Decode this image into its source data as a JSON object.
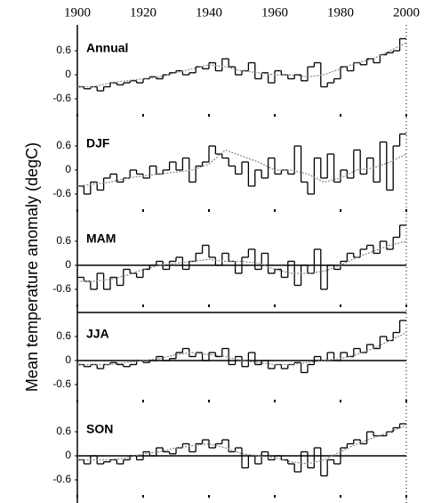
{
  "chart_data": [
    {
      "type": "line",
      "title": "Annual",
      "ylabel": "Mean temperature anomaly (degC)",
      "xlim": [
        1900,
        2000
      ],
      "xticks": [
        1900,
        1920,
        1940,
        1960,
        1980,
        2000
      ],
      "ylim": [
        -1.2,
        1.2
      ],
      "yticks": [
        -0.6,
        0,
        0.6
      ],
      "zero_line": false,
      "series": [
        {
          "color": "#000000",
          "style": "step",
          "x": [
            1900,
            1902,
            1904,
            1906,
            1908,
            1910,
            1912,
            1914,
            1916,
            1918,
            1920,
            1922,
            1924,
            1926,
            1928,
            1930,
            1932,
            1934,
            1936,
            1938,
            1940,
            1942,
            1944,
            1946,
            1948,
            1950,
            1952,
            1954,
            1956,
            1958,
            1960,
            1962,
            1964,
            1966,
            1968,
            1970,
            1972,
            1974,
            1976,
            1978,
            1980,
            1982,
            1984,
            1986,
            1988,
            1990,
            1992,
            1994,
            1996,
            1998
          ],
          "values": [
            -0.3,
            -0.35,
            -0.3,
            -0.4,
            -0.3,
            -0.2,
            -0.25,
            -0.2,
            -0.15,
            -0.2,
            -0.1,
            -0.05,
            -0.1,
            0.0,
            0.05,
            0.1,
            0.0,
            0.05,
            0.2,
            0.15,
            0.3,
            0.1,
            0.4,
            0.2,
            0.0,
            0.1,
            0.3,
            -0.1,
            0.05,
            -0.2,
            0.1,
            0.0,
            -0.1,
            0.0,
            -0.15,
            0.2,
            0.3,
            -0.3,
            -0.2,
            -0.1,
            0.2,
            0.1,
            0.3,
            0.25,
            0.4,
            0.3,
            0.5,
            0.55,
            0.6,
            0.9
          ]
        },
        {
          "color": "#888888",
          "style": "dotted",
          "x": [
            1900,
            1905,
            1910,
            1915,
            1920,
            1925,
            1930,
            1935,
            1940,
            1945,
            1950,
            1955,
            1960,
            1965,
            1970,
            1975,
            1980,
            1985,
            1990,
            1995,
            2000
          ],
          "values": [
            -0.3,
            -0.3,
            -0.2,
            -0.15,
            -0.1,
            -0.05,
            0.05,
            0.15,
            0.25,
            0.2,
            0.1,
            0.05,
            0.0,
            0.0,
            -0.05,
            0.0,
            0.15,
            0.3,
            0.4,
            0.6,
            0.8
          ]
        }
      ]
    },
    {
      "type": "line",
      "title": "DJF",
      "ylim": [
        -1.2,
        1.2
      ],
      "yticks": [
        -0.6,
        0,
        0.6
      ],
      "zero_line": false,
      "series": [
        {
          "color": "#000000",
          "style": "step",
          "x": [
            1900,
            1902,
            1904,
            1906,
            1908,
            1910,
            1912,
            1914,
            1916,
            1918,
            1920,
            1922,
            1924,
            1926,
            1928,
            1930,
            1932,
            1934,
            1936,
            1938,
            1940,
            1942,
            1944,
            1946,
            1948,
            1950,
            1952,
            1954,
            1956,
            1958,
            1960,
            1962,
            1964,
            1966,
            1968,
            1970,
            1972,
            1974,
            1976,
            1978,
            1980,
            1982,
            1984,
            1986,
            1988,
            1990,
            1992,
            1994,
            1996,
            1998
          ],
          "values": [
            -0.4,
            -0.6,
            -0.3,
            -0.5,
            -0.2,
            -0.1,
            -0.3,
            -0.2,
            0.0,
            -0.1,
            -0.2,
            0.1,
            -0.1,
            0.0,
            0.2,
            0.0,
            0.3,
            -0.3,
            0.1,
            0.2,
            0.6,
            0.4,
            0.3,
            0.1,
            -0.1,
            0.2,
            -0.4,
            0.0,
            -0.2,
            0.3,
            -0.1,
            0.0,
            -0.1,
            0.6,
            -0.3,
            -0.6,
            0.3,
            -0.2,
            0.4,
            -0.3,
            0.0,
            -0.2,
            0.5,
            -0.1,
            0.3,
            -0.3,
            0.7,
            -0.5,
            0.6,
            0.9
          ]
        },
        {
          "color": "#888888",
          "style": "dotted",
          "x": [
            1900,
            1905,
            1910,
            1915,
            1920,
            1925,
            1930,
            1935,
            1940,
            1945,
            1950,
            1955,
            1960,
            1965,
            1970,
            1975,
            1980,
            1985,
            1990,
            1995,
            2000
          ],
          "values": [
            -0.4,
            -0.35,
            -0.3,
            -0.2,
            -0.15,
            -0.1,
            -0.05,
            0.0,
            0.15,
            0.5,
            0.35,
            0.2,
            0.0,
            0.0,
            -0.1,
            -0.3,
            -0.2,
            0.0,
            0.05,
            0.2,
            0.4
          ]
        }
      ]
    },
    {
      "type": "line",
      "title": "MAM",
      "ylim": [
        -1.2,
        1.2
      ],
      "yticks": [
        -0.6,
        0,
        0.6
      ],
      "zero_line": true,
      "series": [
        {
          "color": "#000000",
          "style": "step",
          "x": [
            1900,
            1902,
            1904,
            1906,
            1908,
            1910,
            1912,
            1914,
            1916,
            1918,
            1920,
            1922,
            1924,
            1926,
            1928,
            1930,
            1932,
            1934,
            1936,
            1938,
            1940,
            1942,
            1944,
            1946,
            1948,
            1950,
            1952,
            1954,
            1956,
            1958,
            1960,
            1962,
            1964,
            1966,
            1968,
            1970,
            1972,
            1974,
            1976,
            1978,
            1980,
            1982,
            1984,
            1986,
            1988,
            1990,
            1992,
            1994,
            1996,
            1998
          ],
          "values": [
            -0.3,
            -0.4,
            -0.6,
            -0.2,
            -0.6,
            -0.3,
            -0.5,
            -0.1,
            -0.2,
            -0.3,
            -0.1,
            0.0,
            0.1,
            -0.1,
            0.1,
            0.2,
            -0.1,
            0.1,
            0.3,
            0.5,
            0.2,
            0.0,
            0.3,
            0.1,
            -0.2,
            0.2,
            0.4,
            -0.1,
            0.3,
            -0.2,
            -0.1,
            -0.3,
            0.1,
            -0.5,
            0.0,
            -0.2,
            0.4,
            -0.6,
            0.0,
            -0.1,
            0.1,
            0.3,
            0.2,
            0.4,
            0.5,
            0.3,
            0.6,
            0.4,
            0.7,
            1.0
          ]
        },
        {
          "color": "#888888",
          "style": "dotted",
          "x": [
            1900,
            1905,
            1910,
            1915,
            1920,
            1925,
            1930,
            1935,
            1940,
            1945,
            1950,
            1955,
            1960,
            1965,
            1970,
            1975,
            1980,
            1985,
            1990,
            1995,
            2000
          ],
          "values": [
            -0.4,
            -0.4,
            -0.35,
            -0.25,
            -0.1,
            0.0,
            0.05,
            0.1,
            0.15,
            0.1,
            0.1,
            0.05,
            -0.1,
            -0.2,
            -0.2,
            -0.15,
            0.0,
            0.2,
            0.35,
            0.5,
            0.6
          ]
        }
      ]
    },
    {
      "type": "line",
      "title": "JJA",
      "ylim": [
        -1.2,
        1.2
      ],
      "yticks": [
        -0.6,
        0,
        0.6
      ],
      "zero_line": true,
      "series": [
        {
          "color": "#000000",
          "style": "step",
          "x": [
            1900,
            1902,
            1904,
            1906,
            1908,
            1910,
            1912,
            1914,
            1916,
            1918,
            1920,
            1922,
            1924,
            1926,
            1928,
            1930,
            1932,
            1934,
            1936,
            1938,
            1940,
            1942,
            1944,
            1946,
            1948,
            1950,
            1952,
            1954,
            1956,
            1958,
            1960,
            1962,
            1964,
            1966,
            1968,
            1970,
            1972,
            1974,
            1976,
            1978,
            1980,
            1982,
            1984,
            1986,
            1988,
            1990,
            1992,
            1994,
            1996,
            1998
          ],
          "values": [
            -0.1,
            -0.15,
            -0.1,
            -0.2,
            -0.1,
            -0.05,
            -0.1,
            -0.15,
            -0.1,
            0.0,
            -0.05,
            0.0,
            0.1,
            0.0,
            0.05,
            0.2,
            0.3,
            0.1,
            0.2,
            0.0,
            0.2,
            0.1,
            0.3,
            -0.1,
            0.1,
            -0.15,
            0.2,
            -0.1,
            0.0,
            -0.2,
            -0.1,
            -0.2,
            -0.1,
            -0.05,
            -0.3,
            -0.1,
            0.1,
            0.0,
            0.2,
            0.0,
            0.2,
            0.1,
            0.3,
            0.2,
            0.4,
            0.3,
            0.6,
            0.5,
            0.7,
            1.0
          ]
        },
        {
          "color": "#888888",
          "style": "dotted",
          "x": [
            1900,
            1905,
            1910,
            1915,
            1920,
            1925,
            1930,
            1935,
            1940,
            1945,
            1950,
            1955,
            1960,
            1965,
            1970,
            1975,
            1980,
            1985,
            1990,
            1995,
            2000
          ],
          "values": [
            -0.1,
            -0.1,
            -0.1,
            -0.05,
            0.0,
            0.05,
            0.15,
            0.2,
            0.15,
            0.1,
            0.0,
            -0.05,
            -0.1,
            -0.1,
            -0.05,
            0.0,
            0.05,
            0.15,
            0.3,
            0.5,
            0.7
          ]
        }
      ]
    },
    {
      "type": "line",
      "title": "SON",
      "ylim": [
        -1.2,
        1.2
      ],
      "yticks": [
        -0.6,
        0,
        0.6
      ],
      "zero_line": true,
      "series": [
        {
          "color": "#000000",
          "style": "step",
          "x": [
            1900,
            1902,
            1904,
            1906,
            1908,
            1910,
            1912,
            1914,
            1916,
            1918,
            1920,
            1922,
            1924,
            1926,
            1928,
            1930,
            1932,
            1934,
            1936,
            1938,
            1940,
            1942,
            1944,
            1946,
            1948,
            1950,
            1952,
            1954,
            1956,
            1958,
            1960,
            1962,
            1964,
            1966,
            1968,
            1970,
            1972,
            1974,
            1976,
            1978,
            1980,
            1982,
            1984,
            1986,
            1988,
            1990,
            1992,
            1994,
            1996,
            1998
          ],
          "values": [
            -0.1,
            -0.2,
            0.0,
            -0.2,
            -0.15,
            -0.1,
            -0.2,
            -0.1,
            0.0,
            -0.1,
            0.1,
            0.0,
            0.2,
            0.1,
            0.05,
            0.2,
            0.3,
            0.1,
            0.3,
            0.4,
            0.2,
            0.3,
            0.4,
            0.1,
            0.2,
            -0.3,
            0.0,
            -0.2,
            0.1,
            -0.1,
            0.0,
            -0.1,
            -0.2,
            -0.4,
            0.1,
            -0.3,
            0.2,
            -0.5,
            -0.1,
            -0.2,
            0.2,
            0.3,
            0.4,
            0.3,
            0.6,
            0.5,
            0.5,
            0.6,
            0.7,
            0.8
          ]
        },
        {
          "color": "#888888",
          "style": "dotted",
          "x": [
            1900,
            1905,
            1910,
            1915,
            1920,
            1925,
            1930,
            1935,
            1940,
            1945,
            1950,
            1955,
            1960,
            1965,
            1970,
            1975,
            1980,
            1985,
            1990,
            1995,
            2000
          ],
          "values": [
            -0.1,
            -0.1,
            -0.1,
            -0.05,
            0.05,
            0.1,
            0.2,
            0.25,
            0.3,
            0.2,
            0.05,
            0.0,
            -0.05,
            -0.15,
            -0.2,
            -0.1,
            0.1,
            0.3,
            0.45,
            0.6,
            0.75
          ]
        }
      ]
    }
  ]
}
